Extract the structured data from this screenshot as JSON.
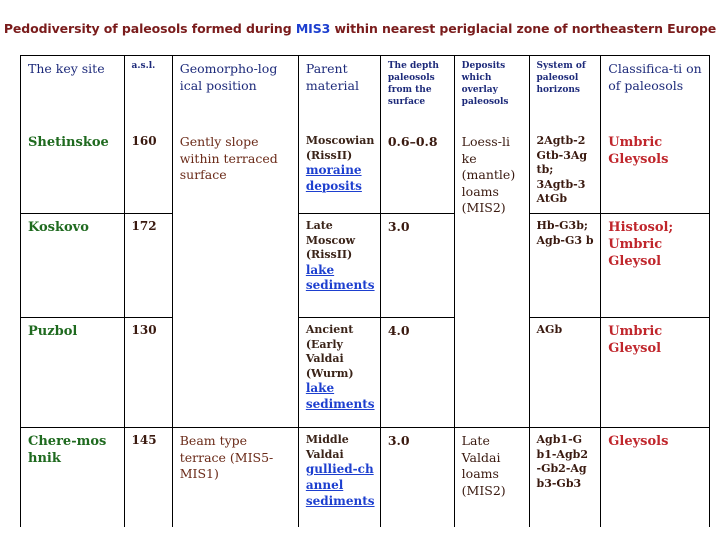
{
  "title": {
    "part1": "Pedodiversity of paleosols formed during ",
    "highlight": "MIS3",
    "part2": " within nearest periglacial zone of northeastern Europe"
  },
  "headers": {
    "site": "The key site",
    "asl": "a.s.l.",
    "geomorph": "Geomorpho-log ical position",
    "parent": "Parent material",
    "depth": "The depth paleosols from the surface",
    "deposits": "Deposits which overlay paleosols",
    "horizons": "System of paleosol horizons",
    "classification": "Classifica-ti on of paleosols"
  },
  "rows": [
    {
      "site": "Shetinskoe",
      "asl": "160",
      "geomorph": "Gently slope within terraced surface",
      "parent_text": "Moscowian (RissII)",
      "parent_link": "moraine deposits",
      "depth": "0.6–0.8",
      "deposits": "Loess-li ke (mantle) loams (MIS2)",
      "horizons": "2Agtb-2 Gtb-3Ag tb; 3Agtb-3 AtGb",
      "classification": "Umbric Gleysols"
    },
    {
      "site": "Koskovo",
      "asl": "172",
      "parent_text": "Late Moscow (RissII)",
      "parent_link": "lake sediments",
      "depth": "3.0",
      "horizons": "Hb-G3b; Agb-G3 b",
      "classification": "Histosol; Umbric Gleysol"
    },
    {
      "site": "Puzbol",
      "asl": "130",
      "parent_text": "Ancient (Early Valdai (Wurm)",
      "parent_link": "lake sediments",
      "depth": "4.0",
      "horizons": "AGb",
      "classification": "Umbric Gleysol"
    },
    {
      "site": "Chere-mos hnik",
      "asl": "145",
      "geomorph": "Beam type terrace (MIS5-MIS1)",
      "parent_text": "Middle Valdai",
      "parent_link": "gullied-ch annel sediments",
      "depth": "3.0",
      "deposits": "Late Valdai loams (MIS2)",
      "horizons": "Agb1-G b1-Agb2 -Gb2-Ag b3-Gb3",
      "classification": "Gleysols"
    }
  ]
}
